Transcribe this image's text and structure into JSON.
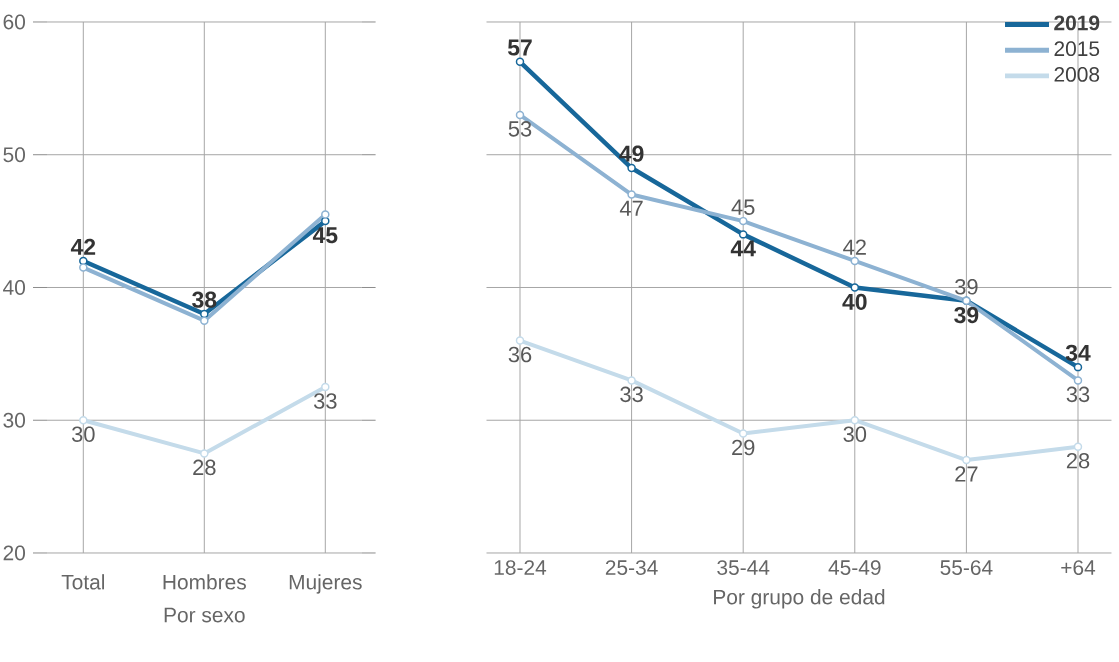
{
  "chart_data": [
    {
      "type": "line",
      "xlabel": "Por sexo",
      "categories": [
        "Total",
        "Hombres",
        "Mujeres"
      ],
      "ylim": [
        20,
        60
      ],
      "yticks": [
        20,
        30,
        40,
        50,
        60
      ],
      "grid": true,
      "marker": "circle",
      "series": [
        {
          "color": "#17679a",
          "values": [
            42,
            38,
            45
          ],
          "value_labels": [
            "42",
            "38",
            "45"
          ]
        },
        {
          "color": "#8db2d2",
          "values": [
            41.5,
            37.5,
            45.5
          ],
          "value_labels": [
            null,
            null,
            null
          ]
        },
        {
          "color": "#c4dbea",
          "values": [
            30,
            27.5,
            32.5
          ],
          "value_labels": [
            "30",
            "28",
            "33"
          ]
        }
      ]
    },
    {
      "type": "line",
      "xlabel": "Por grupo de edad",
      "categories": [
        "18-24",
        "25-34",
        "35-44",
        "45-49",
        "55-64",
        "+64"
      ],
      "ylim": [
        20,
        60
      ],
      "yticks": [
        20,
        30,
        40,
        50,
        60
      ],
      "tick_labels": "x",
      "grid": true,
      "marker": "circle",
      "legend": "top right",
      "series": [
        {
          "name": "2019",
          "color": "#17679a",
          "values": [
            57,
            49,
            44,
            40,
            39,
            34
          ],
          "value_labels": [
            "57",
            "49",
            "44",
            "40",
            "39",
            "34"
          ]
        },
        {
          "name": "2015",
          "color": "#8db2d2",
          "values": [
            53,
            47,
            45,
            42,
            39,
            33
          ],
          "value_labels": [
            "53",
            "47",
            "45",
            "42",
            "39",
            "33"
          ]
        },
        {
          "name": "2008",
          "color": "#c4dbea",
          "values": [
            36,
            33,
            29,
            30,
            27,
            28
          ],
          "value_labels": [
            "36",
            "33",
            "29",
            "30",
            "27",
            "28"
          ]
        }
      ]
    }
  ]
}
